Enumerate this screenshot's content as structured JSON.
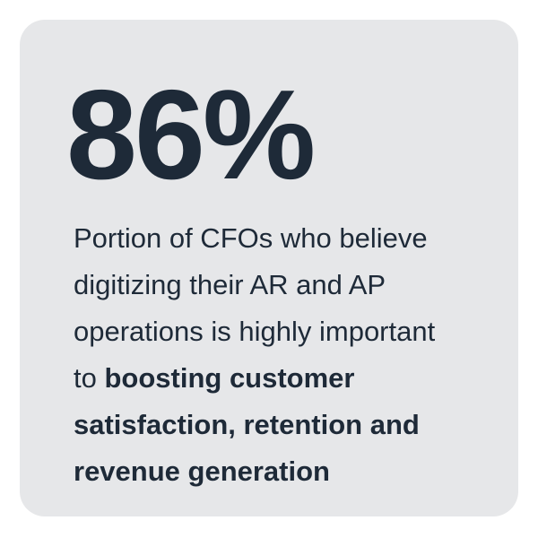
{
  "card": {
    "stat_value": "86%",
    "description": {
      "line1": "Portion of CFOs who believe",
      "line2": "digitizing their AR and AP",
      "line3": "operations is highly important",
      "line4_regular": "to ",
      "line4_bold": "boosting customer",
      "line5_bold": "satisfaction, retention and",
      "line6_bold": "revenue generation"
    }
  }
}
